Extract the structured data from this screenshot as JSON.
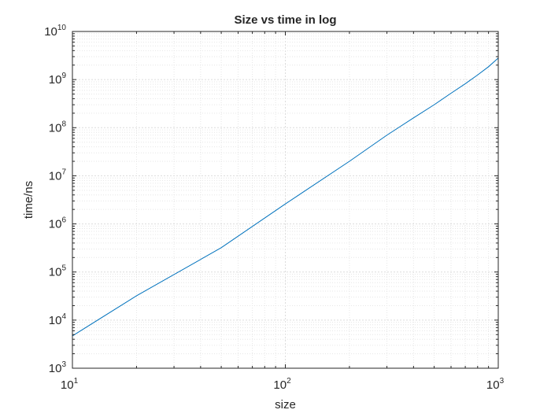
{
  "chart_data": {
    "type": "line",
    "title": "Size vs time in log",
    "xlabel": "size",
    "ylabel": "time/ns",
    "xscale": "log",
    "yscale": "log",
    "xlim": [
      10,
      1000
    ],
    "ylim": [
      1000,
      10000000000
    ],
    "grid": "major and minor, dotted",
    "x_ticks": [
      {
        "base": "10",
        "exp": "1",
        "value": 10
      },
      {
        "base": "10",
        "exp": "2",
        "value": 100
      },
      {
        "base": "10",
        "exp": "3",
        "value": 1000
      }
    ],
    "y_ticks": [
      {
        "base": "10",
        "exp": "3",
        "value": 1000
      },
      {
        "base": "10",
        "exp": "4",
        "value": 10000
      },
      {
        "base": "10",
        "exp": "5",
        "value": 100000
      },
      {
        "base": "10",
        "exp": "6",
        "value": 1000000
      },
      {
        "base": "10",
        "exp": "7",
        "value": 10000000
      },
      {
        "base": "10",
        "exp": "8",
        "value": 100000000
      },
      {
        "base": "10",
        "exp": "9",
        "value": 1000000000
      },
      {
        "base": "10",
        "exp": "10",
        "value": 10000000000
      }
    ],
    "series": [
      {
        "color": "#0072bd",
        "x": [
          10,
          20,
          50,
          100,
          200,
          300,
          400,
          500,
          600,
          700,
          800,
          900,
          1000
        ],
        "y": [
          4700,
          32000,
          320000,
          2600000,
          20000000,
          70000000,
          160000000,
          300000000,
          520000000,
          820000000,
          1250000000,
          1850000000,
          2800000000
        ]
      }
    ]
  }
}
